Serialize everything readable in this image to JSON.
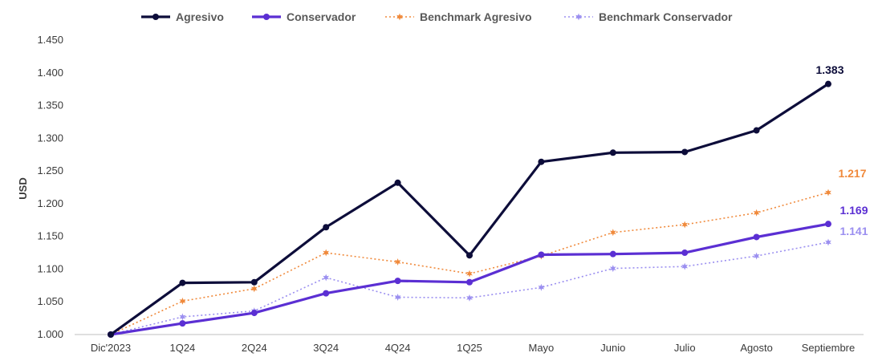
{
  "chart_data": {
    "type": "line",
    "title": "",
    "xlabel": "",
    "ylabel": "USD",
    "categories": [
      "Dic'2023",
      "1Q24",
      "2Q24",
      "3Q24",
      "4Q24",
      "1Q25",
      "Mayo",
      "Junio",
      "Julio",
      "Agosto",
      "Septiembre"
    ],
    "ylim": [
      1.0,
      1.45
    ],
    "yticks": [
      1.0,
      1.05,
      1.1,
      1.15,
      1.2,
      1.25,
      1.3,
      1.35,
      1.4,
      1.45
    ],
    "ytick_labels": [
      "1.000",
      "1.050",
      "1.100",
      "1.150",
      "1.200",
      "1.250",
      "1.300",
      "1.350",
      "1.400",
      "1.450"
    ],
    "grid": false,
    "legend_position": "top",
    "series": [
      {
        "name": "Agresivo",
        "color": "#0d0d3a",
        "style": "solid",
        "marker": "circle",
        "values": [
          1.0,
          1.079,
          1.08,
          1.164,
          1.232,
          1.121,
          1.264,
          1.278,
          1.279,
          1.312,
          1.383
        ],
        "end_label": "1.383"
      },
      {
        "name": "Conservador",
        "color": "#5b2fd3",
        "style": "solid",
        "marker": "circle",
        "values": [
          1.0,
          1.017,
          1.033,
          1.063,
          1.082,
          1.08,
          1.122,
          1.123,
          1.125,
          1.149,
          1.169
        ],
        "end_label": "1.169"
      },
      {
        "name": "Benchmark Agresivo",
        "color": "#f08a3c",
        "style": "dotted",
        "marker": "star",
        "values": [
          1.0,
          1.051,
          1.07,
          1.125,
          1.111,
          1.093,
          1.12,
          1.156,
          1.168,
          1.186,
          1.217
        ],
        "end_label": "1.217"
      },
      {
        "name": "Benchmark Conservador",
        "color": "#9b8ff0",
        "style": "dotted",
        "marker": "star",
        "values": [
          1.0,
          1.027,
          1.036,
          1.087,
          1.057,
          1.056,
          1.072,
          1.101,
          1.104,
          1.12,
          1.141
        ],
        "end_label": "1.141"
      }
    ]
  }
}
